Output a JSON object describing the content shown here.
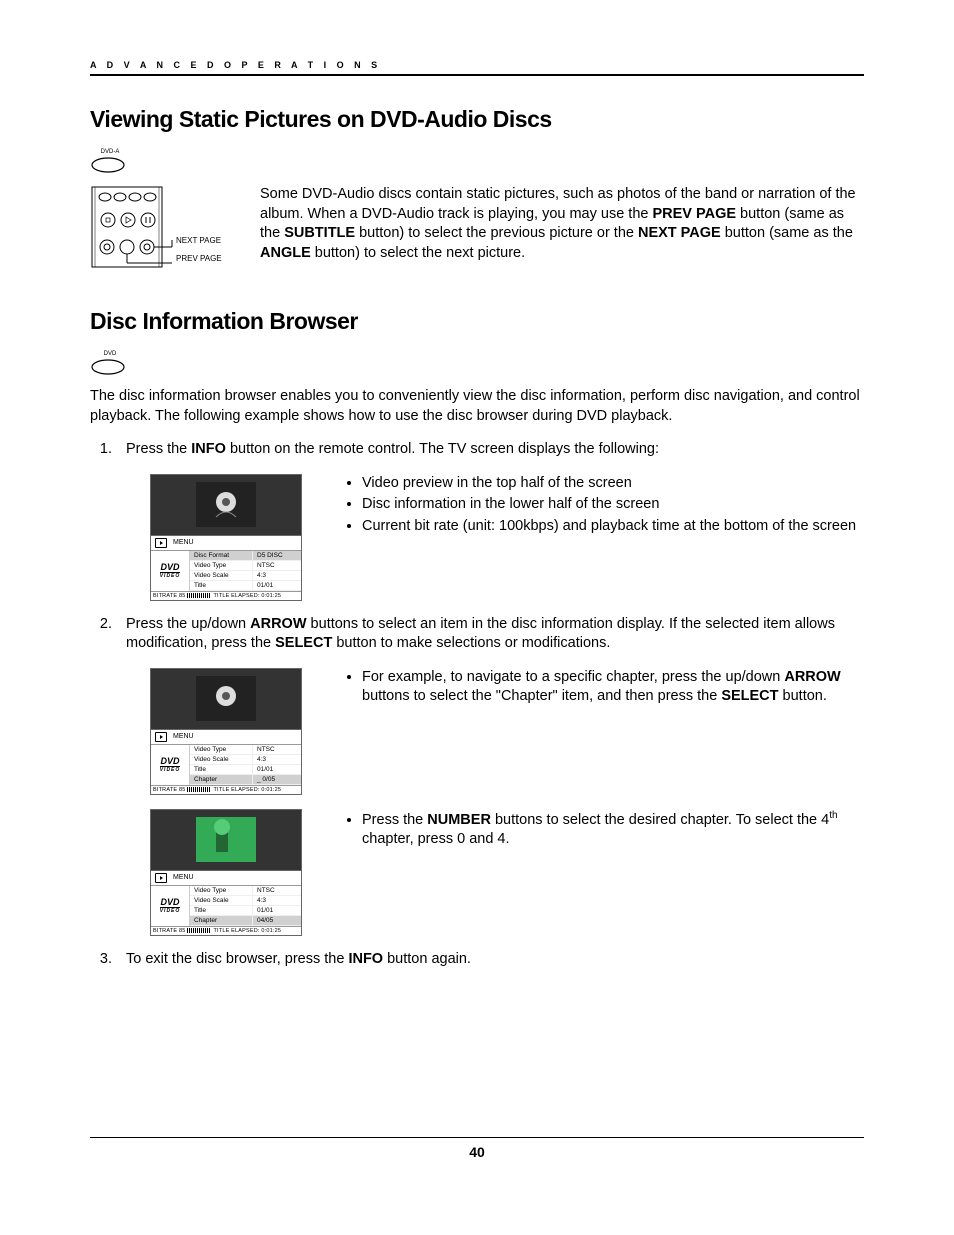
{
  "header": {
    "label": "A D V A N C E D   O P E R A T I O N S"
  },
  "section1": {
    "title": "Viewing Static Pictures on DVD-Audio Discs",
    "icon_label": "DVD-A",
    "remote": {
      "next": "NEXT PAGE",
      "prev": "PREV PAGE"
    },
    "paragraph_parts": {
      "p1": "Some DVD-Audio discs contain static pictures, such as photos of the band or narration of the album.  When a DVD-Audio track is playing, you may use the ",
      "b1": "PREV PAGE",
      "p2": " button (same as the ",
      "b2": "SUBTITLE",
      "p3": " button) to select the previous picture or the ",
      "b3": "NEXT PAGE",
      "p4": " button (same as the ",
      "b4": "ANGLE",
      "p5": " button) to select the next picture."
    }
  },
  "section2": {
    "title": "Disc Information Browser",
    "icon_label": "DVD",
    "intro": "The disc information browser enables you to conveniently view the disc information, perform disc navigation, and control playback.  The following example shows how to use the disc browser during DVD playback.",
    "step1": {
      "text_a": "Press the ",
      "b1": "INFO",
      "text_b": " button on the remote control.  The TV screen displays the following:",
      "bullets": [
        "Video preview in the top half of the screen",
        "Disc information in the lower half of the screen",
        "Current bit rate (unit: 100kbps) and playback time at the bottom of the screen"
      ],
      "browser": {
        "menu": "MENU",
        "logo_top": "DVD",
        "logo_bot": "VIDEO",
        "rows": [
          {
            "k": "Disc Format",
            "v": "D5 DISC",
            "hl": true
          },
          {
            "k": "Video Type",
            "v": "NTSC"
          },
          {
            "k": "Video Scale",
            "v": "4:3"
          },
          {
            "k": "Title",
            "v": "01/01"
          }
        ],
        "status_a": "BITRATE  85",
        "status_b": "TITLE ELAPSED: 0:01:25"
      }
    },
    "step2": {
      "text_a": "Press the up/down ",
      "b1": "ARROW",
      "text_b": " buttons to select an item in the disc information display.  If the selected item allows modification, press the ",
      "b2": "SELECT",
      "text_c": " button to make selections or modifications.",
      "bullet_a1": "For example, to navigate to a specific chapter, press the up/down ",
      "bullet_b1": "ARROW",
      "bullet_a2": " buttons to select the \"Chapter\" item, and then press the ",
      "bullet_b2": "SELECT",
      "bullet_a3": " button.",
      "browserA": {
        "menu": "MENU",
        "rows": [
          {
            "k": "Video Type",
            "v": "NTSC"
          },
          {
            "k": "Video Scale",
            "v": "4:3"
          },
          {
            "k": "Title",
            "v": "01/01"
          },
          {
            "k": "Chapter",
            "v": "_ 0/05",
            "hl": true
          }
        ]
      },
      "bullet2_a": "Press the ",
      "bullet2_b": "NUMBER",
      "bullet2_c": " buttons to select the desired chapter. To select the 4",
      "bullet2_sup": "th",
      "bullet2_d": " chapter, press 0 and 4.",
      "browserB": {
        "menu": "MENU",
        "rows": [
          {
            "k": "Video Type",
            "v": "NTSC"
          },
          {
            "k": "Video Scale",
            "v": "4:3"
          },
          {
            "k": "Title",
            "v": "01/01"
          },
          {
            "k": "Chapter",
            "v": "04/05",
            "hl": true
          }
        ]
      }
    },
    "step3": {
      "text_a": "To exit the disc browser, press the ",
      "b1": "INFO",
      "text_b": " button again."
    }
  },
  "footer": {
    "page_number": "40"
  },
  "style": {
    "text_color": "#000000",
    "bg_color": "#ffffff",
    "highlight_row": "#d0d0d0"
  }
}
